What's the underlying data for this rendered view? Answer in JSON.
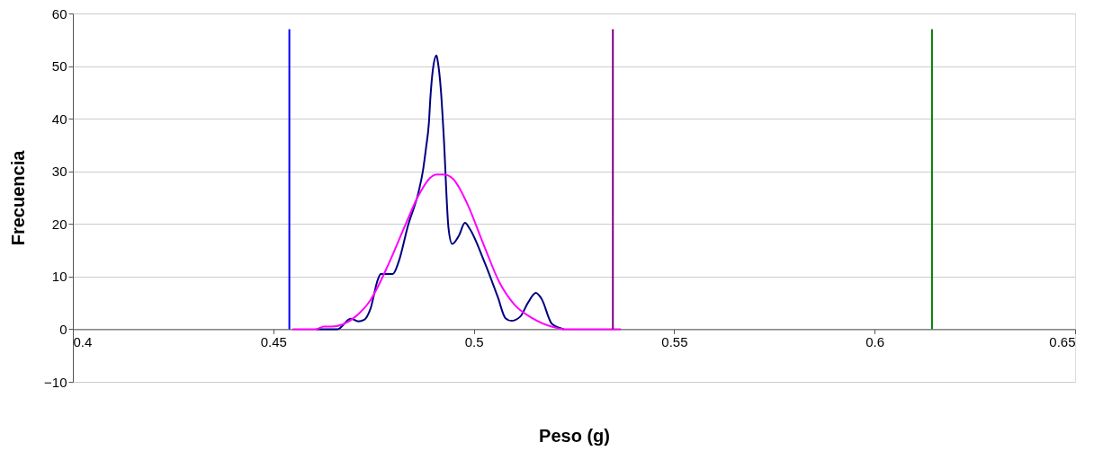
{
  "chart_data": {
    "type": "line",
    "xlabel": "Peso (g)",
    "ylabel": "Frecuencia",
    "xlim": [
      0.4,
      0.65
    ],
    "xticks": [
      0.4,
      0.45,
      0.5,
      0.55,
      0.6,
      0.65
    ],
    "ylim": [
      -10,
      60
    ],
    "yticks": [
      -10,
      0,
      10,
      20,
      30,
      40,
      50,
      60
    ],
    "grid": "y",
    "legend": false,
    "marker": "none",
    "line_style": "solid",
    "series": [
      {
        "color": "#000080",
        "x": [
          0.4607,
          0.466,
          0.4693,
          0.4712,
          0.4727,
          0.4742,
          0.4761,
          0.4768,
          0.4798,
          0.4813,
          0.4836,
          0.4862,
          0.4873,
          0.4881,
          0.4888,
          0.4892,
          0.4898,
          0.4907,
          0.491,
          0.4918,
          0.4925,
          0.4937,
          0.4946,
          0.4963,
          0.4978,
          0.4989,
          0.5026,
          0.506,
          0.5079,
          0.5094,
          0.5116,
          0.5135,
          0.5155,
          0.5169,
          0.5195,
          0.5225
        ],
        "values": [
          0,
          0,
          2.0,
          1.5,
          1.8,
          3.8,
          9.5,
          10.5,
          10.5,
          12.9,
          19.7,
          26,
          30,
          34.5,
          39.1,
          44.2,
          49.3,
          52.0,
          51,
          45.4,
          36.8,
          19.2,
          16.2,
          17.8,
          20.2,
          19.2,
          12.9,
          6.1,
          2.1,
          1.6,
          2.4,
          5.0,
          6.9,
          5.8,
          1.0,
          0
        ]
      },
      {
        "color": "#ff00ff",
        "x": [
          0.4548,
          0.4607,
          0.4626,
          0.4645,
          0.4705,
          0.4742,
          0.4787,
          0.4832,
          0.4862,
          0.4907,
          0.4925,
          0.4948,
          0.4981,
          0.5026,
          0.5064,
          0.5101,
          0.5146,
          0.5198,
          0.5227,
          0.5367
        ],
        "values": [
          0,
          0,
          0.5,
          0.5,
          2.4,
          5.5,
          12.3,
          20.3,
          25.4,
          29.4,
          29.4,
          28.6,
          24.3,
          15.8,
          8.9,
          4.7,
          2.1,
          0.4,
          0,
          0
        ]
      },
      {
        "color": "#0000ff",
        "x": [
          0.454,
          0.454
        ],
        "values": [
          0,
          57
        ]
      },
      {
        "color": "#800080",
        "x": [
          0.5347,
          0.5347
        ],
        "values": [
          0,
          57
        ]
      },
      {
        "color": "#008000",
        "x": [
          0.6143,
          0.6143
        ],
        "values": [
          0,
          57
        ]
      }
    ]
  }
}
